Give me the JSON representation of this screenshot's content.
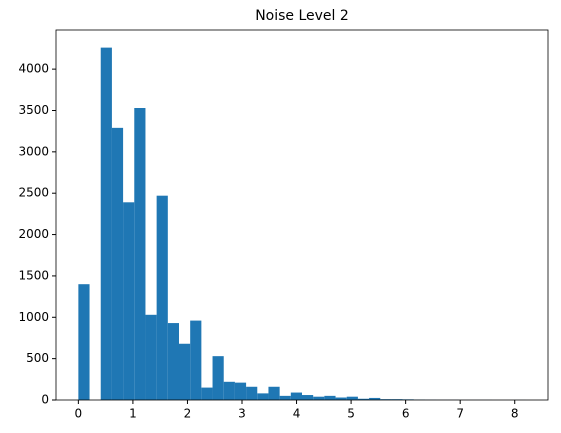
{
  "chart_data": {
    "type": "histogram",
    "title": "Noise Level 2",
    "color": "#1f77b4",
    "bins": [
      0,
      0.205,
      0.41,
      0.615,
      0.82,
      1.025,
      1.23,
      1.435,
      1.64,
      1.845,
      2.05,
      2.255,
      2.46,
      2.665,
      2.87,
      3.075,
      3.28,
      3.485,
      3.69,
      3.895,
      4.1,
      4.305,
      4.51,
      4.715,
      4.92,
      5.125,
      5.33,
      5.535,
      5.74,
      5.945,
      6.15,
      6.355,
      6.56,
      6.765,
      6.97,
      7.175,
      7.38,
      7.585,
      7.79,
      7.995,
      8.2
    ],
    "values": [
      1400,
      0,
      4260,
      3290,
      2390,
      3530,
      1030,
      2470,
      930,
      680,
      960,
      150,
      530,
      220,
      210,
      160,
      80,
      160,
      50,
      90,
      60,
      40,
      50,
      30,
      40,
      15,
      25,
      10,
      10,
      8,
      5,
      3,
      2,
      2,
      1,
      1,
      1,
      0,
      0,
      1
    ],
    "xlim": [
      -0.41,
      8.61
    ],
    "ylim": [
      0,
      4473
    ],
    "xticks": [
      0,
      1,
      2,
      3,
      4,
      5,
      6,
      7,
      8
    ],
    "yticks": [
      0,
      500,
      1000,
      1500,
      2000,
      2500,
      3000,
      3500,
      4000
    ]
  }
}
